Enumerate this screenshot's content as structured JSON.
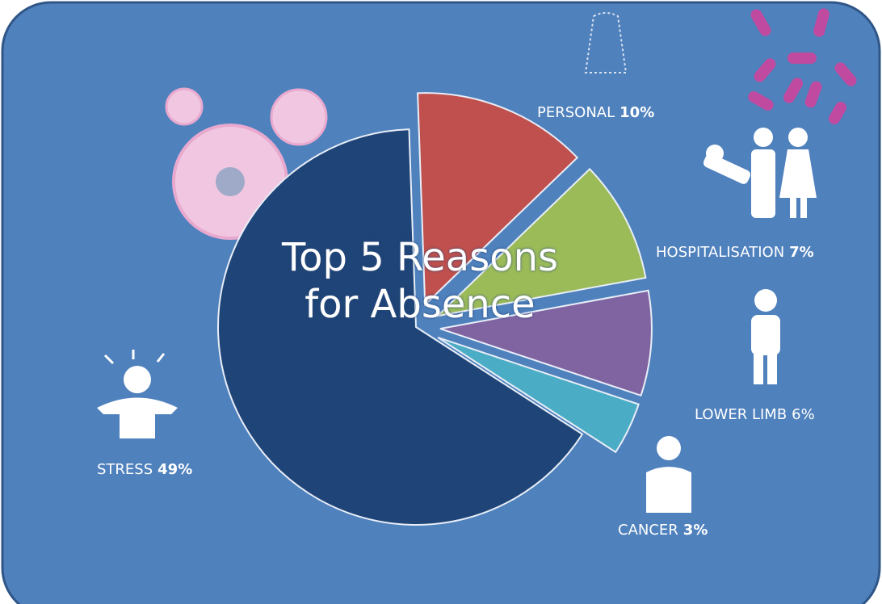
{
  "chart_data": {
    "type": "pie",
    "title": "Top 5 Reasons for Absence",
    "categories": [
      "PERSONAL",
      "HOSPITALISATION",
      "LOWER LIMB",
      "CANCER",
      "STRESS"
    ],
    "values": [
      10,
      7,
      6,
      3,
      49
    ],
    "value_labels": [
      "10%",
      "7%",
      "6%",
      "3%",
      "49%"
    ],
    "colors": [
      "#c0504d",
      "#9bbb59",
      "#8064a2",
      "#4bacc6",
      "#1f4477"
    ]
  }
}
